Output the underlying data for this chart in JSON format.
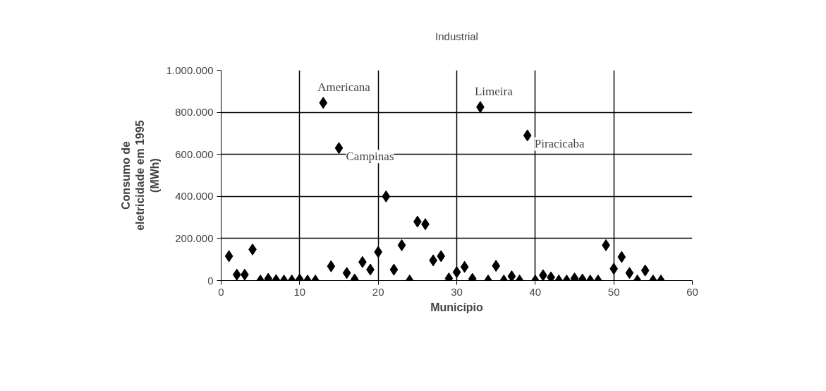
{
  "chart_data": {
    "type": "scatter",
    "title": "Industrial",
    "xlabel": "Município",
    "ylabel": "Consumo de\neletricidade em 1995\n(MWh)",
    "x": [
      1,
      2,
      3,
      4,
      5,
      6,
      7,
      8,
      9,
      10,
      11,
      12,
      13,
      14,
      15,
      16,
      17,
      18,
      19,
      20,
      21,
      22,
      23,
      24,
      25,
      26,
      27,
      28,
      29,
      30,
      31,
      32,
      33,
      34,
      35,
      36,
      37,
      38,
      39,
      40,
      41,
      42,
      43,
      44,
      45,
      46,
      47,
      48,
      49,
      50,
      51,
      52,
      53,
      54,
      55,
      56
    ],
    "series": [
      {
        "color": "#000000",
        "values": [
          116000,
          28000,
          28000,
          148000,
          0,
          8000,
          2000,
          0,
          0,
          5000,
          0,
          0,
          845000,
          68000,
          630000,
          36000,
          5000,
          88000,
          52000,
          136000,
          400000,
          52000,
          168000,
          0,
          280000,
          268000,
          96000,
          116000,
          10000,
          40000,
          65000,
          8000,
          825000,
          0,
          70000,
          0,
          20000,
          0,
          690000,
          0,
          25000,
          15000,
          0,
          0,
          10000,
          5000,
          0,
          0,
          168000,
          56000,
          112000,
          36000,
          0,
          48000,
          0,
          0
        ]
      }
    ],
    "xlim": [
      0,
      60
    ],
    "xticks": [
      0,
      10,
      20,
      30,
      40,
      50,
      60
    ],
    "ylim": [
      0,
      1000000
    ],
    "yticks": [
      {
        "value": 0,
        "label": "0"
      },
      {
        "value": 200000,
        "label": "200.000"
      },
      {
        "value": 400000,
        "label": "400.000"
      },
      {
        "value": 600000,
        "label": "600.000"
      },
      {
        "value": 800000,
        "label": "800.000"
      },
      {
        "value": 1000000,
        "label": "1.000.000"
      }
    ],
    "grid": true,
    "marker": "diamond",
    "annotations": [
      {
        "text": "Americana",
        "x": 13,
        "y": 845000
      },
      {
        "text": "Campinas",
        "x": 15,
        "y": 630000
      },
      {
        "text": "Limeira",
        "x": 33,
        "y": 825000
      },
      {
        "text": "Piracicaba",
        "x": 39,
        "y": 690000
      }
    ]
  }
}
